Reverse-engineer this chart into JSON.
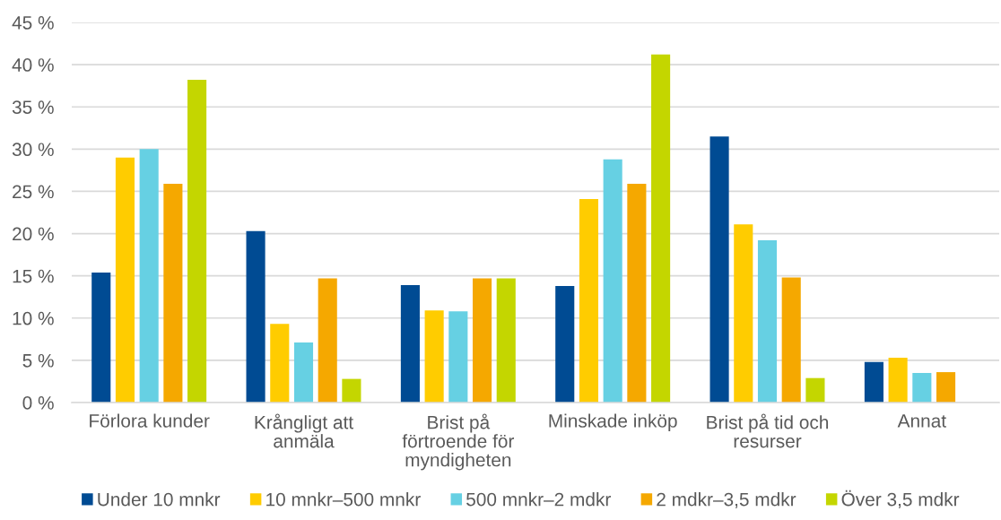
{
  "chart_data": {
    "type": "bar",
    "categories": [
      "Förlora kunder",
      "Krångligt att\nanmäla",
      "Brist på\nförtroende för\nmyndigheten",
      "Minskade inköp",
      "Brist på tid och\nresurser",
      "Annat"
    ],
    "series": [
      {
        "name": "Under 10 mnkr",
        "color": "#004b93",
        "values": [
          15.4,
          20.3,
          13.9,
          13.8,
          31.5,
          4.8
        ]
      },
      {
        "name": "10 mnkr–500 mnkr",
        "color": "#ffcc00",
        "values": [
          29.0,
          9.3,
          10.9,
          24.1,
          21.1,
          5.3
        ]
      },
      {
        "name": "500 mnkr–2 mdkr",
        "color": "#66d0e3",
        "values": [
          30.0,
          7.1,
          10.8,
          28.8,
          19.2,
          3.5
        ]
      },
      {
        "name": "2 mdkr–3,5 mdkr",
        "color": "#f5a800",
        "values": [
          25.9,
          14.7,
          14.7,
          25.9,
          14.8,
          3.6
        ]
      },
      {
        "name": "Över 3,5 mdkr",
        "color": "#c4d600",
        "values": [
          38.2,
          2.8,
          14.7,
          41.2,
          2.9,
          null
        ]
      }
    ],
    "ylim": [
      0,
      45
    ],
    "yticks": [
      {
        "value": 0,
        "label": "0 %"
      },
      {
        "value": 5,
        "label": "5 %"
      },
      {
        "value": 10,
        "label": "10 %"
      },
      {
        "value": 15,
        "label": "15 %"
      },
      {
        "value": 20,
        "label": "20 %"
      },
      {
        "value": 25,
        "label": "25 %"
      },
      {
        "value": 30,
        "label": "30 %"
      },
      {
        "value": 35,
        "label": "35 %"
      },
      {
        "value": 40,
        "label": "40 %"
      },
      {
        "value": 45,
        "label": "45 %"
      }
    ],
    "grid": "y",
    "legend": "bottom"
  }
}
